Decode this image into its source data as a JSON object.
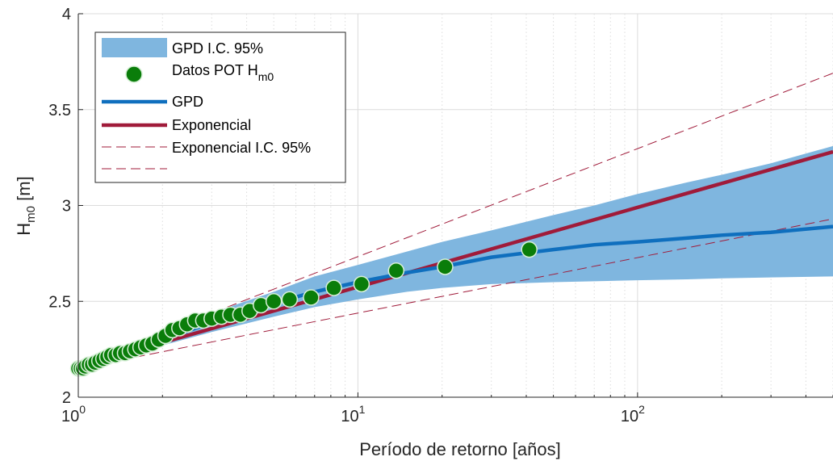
{
  "chart_data": {
    "type": "scatter",
    "xlabel": "Período de retorno [años]",
    "ylabel_main": "H",
    "ylabel_sub": "m0",
    "ylabel_unit": " [m]",
    "xscale": "log",
    "xlim": [
      1,
      500
    ],
    "ylim": [
      2,
      4
    ],
    "grid": true,
    "minor_grid_x": true,
    "legend_position": "top-left",
    "x_ticks": [
      {
        "value": 1,
        "base": "10",
        "exp": "0"
      },
      {
        "value": 10,
        "base": "10",
        "exp": "1"
      },
      {
        "value": 100,
        "base": "10",
        "exp": "2"
      }
    ],
    "y_ticks": [
      {
        "value": 2,
        "label": "2"
      },
      {
        "value": 2.5,
        "label": "2.5"
      },
      {
        "value": 3,
        "label": "3"
      },
      {
        "value": 3.5,
        "label": "3.5"
      },
      {
        "value": 4,
        "label": "4"
      }
    ],
    "legend": {
      "band": "GPD I.C. 95%",
      "points_main": "Datos POT H",
      "points_sub": "m0",
      "gpd": "GPD",
      "exp": "Exponencial",
      "exp_ci": "Exponencial I.C. 95%"
    },
    "colors": {
      "band": "#7fb6df",
      "gpd": "#0f6fbe",
      "exp": "#a01b3a",
      "points": "#0a7d0a",
      "point_edge": "#d8f0d8",
      "grid": "#dcdcdc",
      "axis": "#262626"
    },
    "series": [
      {
        "name": "Datos POT H_m0",
        "kind": "points",
        "x": [
          1.0,
          1.02,
          1.04,
          1.06,
          1.09,
          1.12,
          1.15,
          1.19,
          1.23,
          1.27,
          1.31,
          1.36,
          1.41,
          1.47,
          1.53,
          1.6,
          1.67,
          1.75,
          1.84,
          1.94,
          2.05,
          2.17,
          2.3,
          2.45,
          2.62,
          2.8,
          3.0,
          3.25,
          3.5,
          3.8,
          4.1,
          4.5,
          5.0,
          5.7,
          6.8,
          8.2,
          10.3,
          13.7,
          20.5,
          41.0
        ],
        "y": [
          2.15,
          2.15,
          2.15,
          2.16,
          2.17,
          2.17,
          2.18,
          2.19,
          2.2,
          2.21,
          2.22,
          2.22,
          2.23,
          2.23,
          2.24,
          2.25,
          2.26,
          2.27,
          2.28,
          2.3,
          2.32,
          2.35,
          2.36,
          2.38,
          2.4,
          2.4,
          2.41,
          2.42,
          2.43,
          2.43,
          2.45,
          2.48,
          2.5,
          2.51,
          2.52,
          2.57,
          2.59,
          2.66,
          2.68,
          2.77
        ]
      },
      {
        "name": "GPD",
        "kind": "line",
        "x": [
          1,
          1.5,
          2,
          3,
          5,
          7,
          10,
          15,
          20,
          30,
          50,
          70,
          100,
          150,
          200,
          300,
          500
        ],
        "y": [
          2.15,
          2.24,
          2.3,
          2.39,
          2.49,
          2.55,
          2.6,
          2.65,
          2.68,
          2.73,
          2.77,
          2.795,
          2.81,
          2.83,
          2.845,
          2.86,
          2.89
        ]
      },
      {
        "name": "Exponencial",
        "kind": "line",
        "x": [
          1,
          500
        ],
        "y": [
          2.16,
          3.28
        ]
      },
      {
        "name": "Exponencial I.C. 95% upper",
        "kind": "dashed",
        "x": [
          1,
          500
        ],
        "y": [
          2.17,
          3.69
        ]
      },
      {
        "name": "Exponencial I.C. 95% lower",
        "kind": "dashed",
        "x": [
          1,
          500
        ],
        "y": [
          2.15,
          2.93
        ]
      },
      {
        "name": "GPD I.C. 95%",
        "kind": "band",
        "x": [
          1,
          2,
          3,
          5,
          7,
          10,
          15,
          20,
          30,
          50,
          70,
          100,
          150,
          200,
          300,
          500
        ],
        "upper": [
          2.16,
          2.33,
          2.44,
          2.55,
          2.63,
          2.69,
          2.76,
          2.81,
          2.87,
          2.95,
          3.0,
          3.06,
          3.12,
          3.16,
          3.22,
          3.31
        ],
        "lower": [
          2.14,
          2.27,
          2.34,
          2.42,
          2.47,
          2.51,
          2.55,
          2.57,
          2.59,
          2.6,
          2.605,
          2.61,
          2.615,
          2.62,
          2.625,
          2.63
        ]
      }
    ]
  }
}
